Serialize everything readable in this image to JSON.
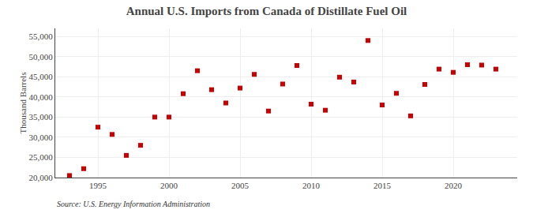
{
  "chart_data": {
    "type": "scatter",
    "title": "Annual U.S. Imports from Canada of Distillate Fuel Oil",
    "ylabel": "Thousand Barrels",
    "annotations": [
      "Source: U.S. Energy Information Administration"
    ],
    "x": [
      1993,
      1994,
      1995,
      1996,
      1997,
      1998,
      1999,
      2000,
      2001,
      2002,
      2003,
      2004,
      2005,
      2006,
      2007,
      2008,
      2009,
      2010,
      2011,
      2012,
      2013,
      2014,
      2015,
      2016,
      2017,
      2018,
      2019,
      2020,
      2021,
      2022,
      2023
    ],
    "values": [
      20500,
      22200,
      32500,
      30700,
      25500,
      28000,
      35000,
      35000,
      40800,
      46500,
      41800,
      38500,
      42200,
      45600,
      36500,
      43200,
      47800,
      38200,
      36700,
      44900,
      43700,
      54000,
      38000,
      40900,
      35300,
      43100,
      46900,
      46100,
      48000,
      47900,
      46900
    ],
    "color": "#cc0000",
    "marker": "square",
    "xlim": [
      1992,
      2024.5
    ],
    "ylim": [
      20000,
      57000
    ],
    "xticks": [
      1995,
      2000,
      2005,
      2010,
      2015,
      2020
    ],
    "yticks": [
      {
        "value": 20000,
        "label": "20,000"
      },
      {
        "value": 25000,
        "label": "25,000"
      },
      {
        "value": 30000,
        "label": "30,000"
      },
      {
        "value": 35000,
        "label": "35,000"
      },
      {
        "value": 40000,
        "label": "40,000"
      },
      {
        "value": 45000,
        "label": "45,000"
      },
      {
        "value": 50000,
        "label": "50,000"
      },
      {
        "value": 55000,
        "label": "55,000"
      }
    ],
    "grid": true
  }
}
